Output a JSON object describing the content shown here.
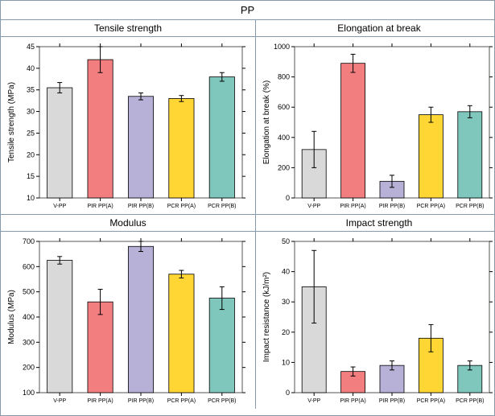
{
  "main_title": "PP",
  "categories": [
    "V-PP",
    "PIR PP(A)",
    "PIR PP(B)",
    "PCR PP(A)",
    "PCR PP(B)"
  ],
  "bar_colors": [
    "#d9d9d9",
    "#f37e80",
    "#b7b1d8",
    "#ffd633",
    "#7fc7bd"
  ],
  "plot_border_color": "#555555",
  "panels": [
    {
      "title": "Tensile strength",
      "ylabel": "Tensile strength (MPa)",
      "ymin": 10,
      "ymax": 45,
      "ystep": 5,
      "values": [
        35.5,
        42.0,
        33.5,
        33.0,
        38.0
      ],
      "errors": [
        1.2,
        3.0,
        0.8,
        0.7,
        1.0
      ]
    },
    {
      "title": "Elongation at break",
      "ylabel": "Elongation at break (%)",
      "ymin": 0,
      "ymax": 1000,
      "ystep": 200,
      "values": [
        320,
        890,
        110,
        550,
        570
      ],
      "errors": [
        120,
        60,
        40,
        50,
        40
      ]
    },
    {
      "title": "Modulus",
      "ylabel": "Modulus (MPa)",
      "ymin": 100,
      "ymax": 700,
      "ystep": 100,
      "values": [
        625,
        460,
        680,
        570,
        475
      ],
      "errors": [
        15,
        50,
        20,
        15,
        45
      ]
    },
    {
      "title": "Impact strength",
      "ylabel": "Impact resistance (kJ/m²)",
      "ymin": 0,
      "ymax": 50,
      "ystep": 10,
      "values": [
        35,
        7,
        9,
        18,
        9
      ],
      "errors": [
        12,
        1.5,
        1.5,
        4.5,
        1.5
      ]
    }
  ]
}
